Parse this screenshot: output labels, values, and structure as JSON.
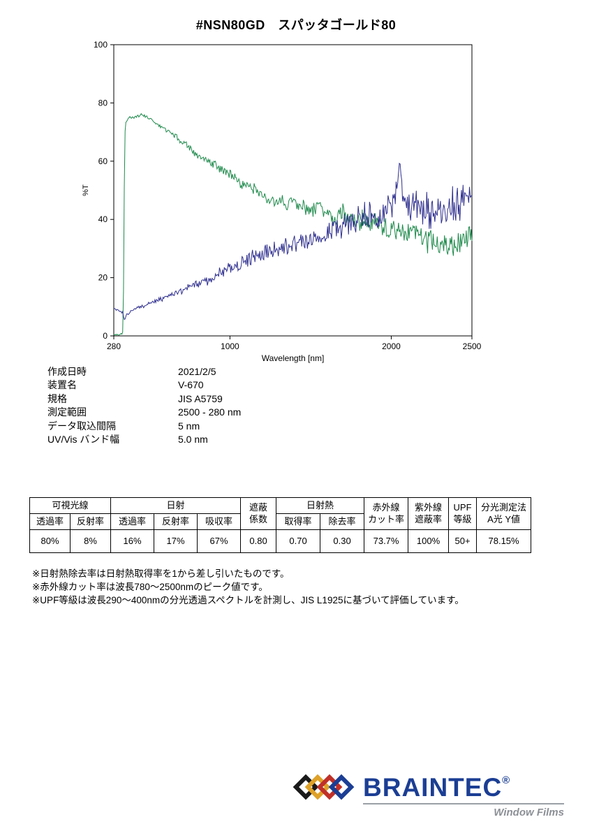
{
  "page": {
    "title": "#NSN80GD　スパッタゴールド80"
  },
  "chart_data": {
    "type": "line",
    "title": "",
    "xlabel": "Wavelength [nm]",
    "ylabel": "%T",
    "xlim": [
      280,
      2500
    ],
    "ylim": [
      0,
      100
    ],
    "xticks": [
      280,
      1000,
      2000,
      2500
    ],
    "yticks": [
      0,
      20,
      40,
      60,
      80,
      100
    ],
    "grid": false,
    "legend": "none",
    "series": [
      {
        "name": "transmittance-green",
        "color": "#1f8a4c",
        "noise_base": 0.4,
        "noise_grow": 4.0,
        "noise_from": 450,
        "points": [
          [
            280,
            0.5
          ],
          [
            300,
            0.5
          ],
          [
            320,
            0.5
          ],
          [
            332,
            0.5
          ],
          [
            336,
            2
          ],
          [
            340,
            15
          ],
          [
            344,
            45
          ],
          [
            348,
            68
          ],
          [
            352,
            73
          ],
          [
            360,
            74
          ],
          [
            380,
            75
          ],
          [
            400,
            75
          ],
          [
            430,
            75.5
          ],
          [
            460,
            76
          ],
          [
            490,
            75
          ],
          [
            520,
            74
          ],
          [
            550,
            72.5
          ],
          [
            580,
            71.5
          ],
          [
            610,
            70.5
          ],
          [
            640,
            69.5
          ],
          [
            670,
            68
          ],
          [
            700,
            66.5
          ],
          [
            730,
            65.5
          ],
          [
            760,
            64
          ],
          [
            790,
            62.5
          ],
          [
            820,
            61.5
          ],
          [
            850,
            60.5
          ],
          [
            880,
            59.5
          ],
          [
            910,
            58.5
          ],
          [
            940,
            57.5
          ],
          [
            970,
            56.5
          ],
          [
            1000,
            55.5
          ],
          [
            1040,
            54
          ],
          [
            1080,
            52.5
          ],
          [
            1120,
            51
          ],
          [
            1160,
            50
          ],
          [
            1200,
            48.5
          ],
          [
            1240,
            47
          ],
          [
            1280,
            46
          ],
          [
            1320,
            45.5
          ],
          [
            1360,
            46
          ],
          [
            1400,
            46.5
          ],
          [
            1440,
            44.5
          ],
          [
            1480,
            43
          ],
          [
            1520,
            43.5
          ],
          [
            1560,
            44.5
          ],
          [
            1600,
            43
          ],
          [
            1640,
            41
          ],
          [
            1680,
            42.5
          ],
          [
            1720,
            41.5
          ],
          [
            1760,
            40.5
          ],
          [
            1800,
            39
          ],
          [
            1840,
            40.5
          ],
          [
            1880,
            37.5
          ],
          [
            1920,
            38.5
          ],
          [
            1960,
            38
          ],
          [
            2000,
            36
          ],
          [
            2040,
            37
          ],
          [
            2080,
            34.5
          ],
          [
            2120,
            35.5
          ],
          [
            2160,
            35
          ],
          [
            2200,
            33
          ],
          [
            2240,
            34
          ],
          [
            2280,
            31.5
          ],
          [
            2320,
            32.5
          ],
          [
            2360,
            30.5
          ],
          [
            2400,
            29.5
          ],
          [
            2440,
            32
          ],
          [
            2470,
            34
          ],
          [
            2500,
            35
          ]
        ]
      },
      {
        "name": "reflectance-blue",
        "color": "#2f2f8f",
        "noise_base": 0.4,
        "noise_grow": 5.0,
        "noise_from": 450,
        "points": [
          [
            280,
            9
          ],
          [
            300,
            9
          ],
          [
            320,
            8.5
          ],
          [
            335,
            8
          ],
          [
            345,
            5.5
          ],
          [
            355,
            7
          ],
          [
            370,
            7.5
          ],
          [
            390,
            8.5
          ],
          [
            420,
            9.5
          ],
          [
            450,
            10
          ],
          [
            480,
            10.5
          ],
          [
            510,
            11.5
          ],
          [
            540,
            12
          ],
          [
            570,
            12.5
          ],
          [
            600,
            13.5
          ],
          [
            630,
            14
          ],
          [
            660,
            14.5
          ],
          [
            690,
            15
          ],
          [
            720,
            16
          ],
          [
            750,
            16.5
          ],
          [
            780,
            17.5
          ],
          [
            810,
            18
          ],
          [
            840,
            19
          ],
          [
            870,
            19.5
          ],
          [
            900,
            20.5
          ],
          [
            930,
            21.5
          ],
          [
            960,
            22
          ],
          [
            990,
            23
          ],
          [
            1020,
            24
          ],
          [
            1060,
            25
          ],
          [
            1100,
            26
          ],
          [
            1140,
            27
          ],
          [
            1180,
            27.5
          ],
          [
            1220,
            28.5
          ],
          [
            1260,
            29
          ],
          [
            1300,
            30
          ],
          [
            1340,
            31
          ],
          [
            1380,
            32
          ],
          [
            1420,
            32.5
          ],
          [
            1460,
            32
          ],
          [
            1500,
            33.5
          ],
          [
            1540,
            34.5
          ],
          [
            1580,
            35
          ],
          [
            1620,
            36
          ],
          [
            1660,
            36.5
          ],
          [
            1700,
            37.5
          ],
          [
            1740,
            38.5
          ],
          [
            1780,
            39.5
          ],
          [
            1820,
            40.5
          ],
          [
            1860,
            41.5
          ],
          [
            1900,
            41
          ],
          [
            1940,
            42.5
          ],
          [
            1980,
            43.5
          ],
          [
            2020,
            46
          ],
          [
            2045,
            57
          ],
          [
            2060,
            52
          ],
          [
            2080,
            47
          ],
          [
            2110,
            45
          ],
          [
            2150,
            43.5
          ],
          [
            2190,
            44
          ],
          [
            2230,
            42.5
          ],
          [
            2270,
            43
          ],
          [
            2310,
            43.5
          ],
          [
            2350,
            44
          ],
          [
            2390,
            44.5
          ],
          [
            2430,
            45.5
          ],
          [
            2470,
            47
          ],
          [
            2500,
            49
          ]
        ]
      }
    ]
  },
  "metadata": {
    "rows": [
      {
        "label": "作成日時",
        "value": "2021/2/5"
      },
      {
        "label": "装置名",
        "value": "V-670"
      },
      {
        "label": "規格",
        "value": "JIS A5759"
      },
      {
        "label": "測定範囲",
        "value": "2500 - 280 nm"
      },
      {
        "label": "データ取込間隔",
        "value": "5 nm"
      },
      {
        "label": "UV/Vis バンド幅",
        "value": "5.0 nm"
      }
    ]
  },
  "table": {
    "groups": {
      "visible": "可視光線",
      "solar": "日射",
      "shading": "遮蔽\n係数",
      "solar_heat": "日射熱",
      "ir_cut": "赤外線\nカット率",
      "uv_shield": "紫外線\n遮蔽率",
      "upf": "UPF\n等級",
      "spectro": "分光測定法\nA光 Y値"
    },
    "sub_headers": [
      "透過率",
      "反射率",
      "透過率",
      "反射率",
      "吸収率",
      "取得率",
      "除去率"
    ],
    "values": [
      "80%",
      "8%",
      "16%",
      "17%",
      "67%",
      "0.80",
      "0.70",
      "0.30",
      "73.7%",
      "100%",
      "50+",
      "78.15%"
    ]
  },
  "footnotes": [
    "※日射熱除去率は日射熱取得率を1から差し引いたものです。",
    "※赤外線カット率は波長780〜2500nmのピーク値です。",
    "※UPF等級は波長290〜400nmの分光透過スペクトルを計測し、JIS L1925に基づいて評価しています。"
  ],
  "logo": {
    "brand": "BRAINTEC",
    "registered": "®",
    "tagline": "Window Films",
    "brand_color": "#1b3e94",
    "diamond_colors": {
      "black": "#1a1a1a",
      "gold": "#dfa128",
      "red": "#c03028",
      "blue": "#1b3e94"
    }
  }
}
